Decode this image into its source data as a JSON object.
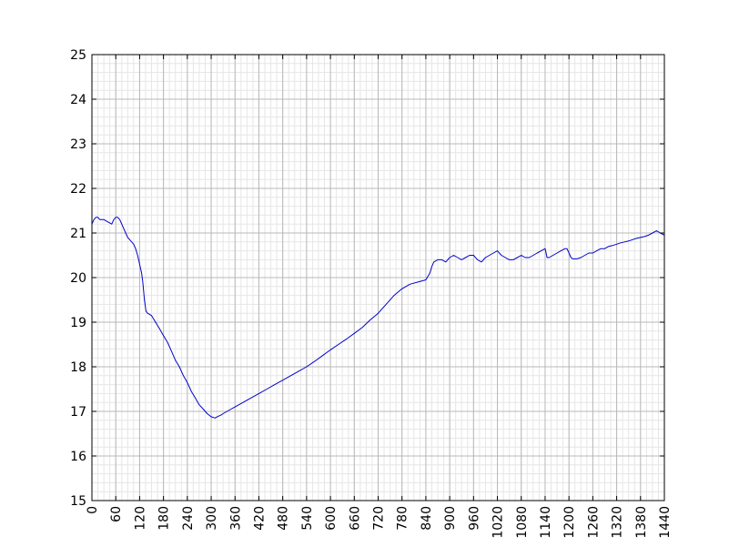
{
  "chart_data": {
    "type": "line",
    "title": "",
    "xlabel": "",
    "ylabel": "",
    "xlim": [
      0,
      1440
    ],
    "ylim": [
      15,
      25
    ],
    "x_ticks": [
      0,
      60,
      120,
      180,
      240,
      300,
      360,
      420,
      480,
      540,
      600,
      660,
      720,
      780,
      840,
      900,
      960,
      1020,
      1080,
      1140,
      1200,
      1260,
      1320,
      1380,
      1440
    ],
    "x_tick_labels": [
      "0",
      "60",
      "120",
      "180",
      "240",
      "300",
      "360",
      "420",
      "480",
      "540",
      "600",
      "660",
      "720",
      "780",
      "840",
      "900",
      "960",
      "1020",
      "1080",
      "1140",
      "1200",
      "1260",
      "1320",
      "1380",
      "1440"
    ],
    "y_ticks": [
      15,
      16,
      17,
      18,
      19,
      20,
      21,
      22,
      23,
      24,
      25
    ],
    "y_tick_labels": [
      "15",
      "16",
      "17",
      "18",
      "19",
      "20",
      "21",
      "22",
      "23",
      "24",
      "25"
    ],
    "grid": true,
    "minor_grid": true,
    "series": [
      {
        "color": "#0000cc",
        "x": [
          0,
          5,
          10,
          15,
          20,
          30,
          40,
          50,
          55,
          60,
          65,
          70,
          75,
          80,
          85,
          90,
          95,
          100,
          105,
          110,
          115,
          120,
          125,
          128,
          132,
          136,
          140,
          150,
          160,
          170,
          180,
          190,
          200,
          210,
          220,
          230,
          240,
          250,
          260,
          270,
          280,
          290,
          300,
          310,
          315,
          320,
          325,
          330,
          340,
          350,
          360,
          380,
          400,
          420,
          440,
          460,
          480,
          500,
          520,
          540,
          560,
          580,
          600,
          620,
          640,
          660,
          680,
          700,
          720,
          740,
          760,
          780,
          800,
          820,
          840,
          850,
          855,
          860,
          870,
          880,
          890,
          900,
          910,
          920,
          930,
          940,
          950,
          960,
          970,
          980,
          990,
          1000,
          1010,
          1020,
          1030,
          1040,
          1050,
          1060,
          1070,
          1080,
          1090,
          1100,
          1110,
          1120,
          1130,
          1140,
          1145,
          1150,
          1160,
          1170,
          1180,
          1190,
          1195,
          1200,
          1205,
          1210,
          1220,
          1230,
          1240,
          1250,
          1260,
          1270,
          1280,
          1290,
          1300,
          1310,
          1320,
          1330,
          1340,
          1350,
          1360,
          1370,
          1380,
          1390,
          1400,
          1410,
          1420,
          1430,
          1440
        ],
        "y": [
          21.2,
          21.3,
          21.35,
          21.35,
          21.3,
          21.3,
          21.25,
          21.2,
          21.3,
          21.35,
          21.35,
          21.3,
          21.2,
          21.1,
          21.0,
          20.9,
          20.85,
          20.8,
          20.75,
          20.65,
          20.5,
          20.3,
          20.1,
          19.9,
          19.5,
          19.25,
          19.2,
          19.15,
          19.0,
          18.85,
          18.7,
          18.55,
          18.35,
          18.15,
          18.0,
          17.8,
          17.65,
          17.45,
          17.3,
          17.15,
          17.05,
          16.95,
          16.88,
          16.85,
          16.88,
          16.9,
          16.92,
          16.95,
          17.0,
          17.05,
          17.1,
          17.2,
          17.3,
          17.4,
          17.5,
          17.6,
          17.7,
          17.8,
          17.9,
          18.0,
          18.12,
          18.25,
          18.38,
          18.5,
          18.62,
          18.75,
          18.88,
          19.05,
          19.2,
          19.4,
          19.6,
          19.75,
          19.85,
          19.9,
          19.95,
          20.1,
          20.25,
          20.35,
          20.4,
          20.4,
          20.35,
          20.45,
          20.5,
          20.45,
          20.4,
          20.45,
          20.5,
          20.5,
          20.4,
          20.35,
          20.45,
          20.5,
          20.55,
          20.6,
          20.5,
          20.45,
          20.4,
          20.4,
          20.45,
          20.5,
          20.45,
          20.45,
          20.5,
          20.55,
          20.6,
          20.65,
          20.45,
          20.45,
          20.5,
          20.55,
          20.6,
          20.65,
          20.65,
          20.55,
          20.45,
          20.42,
          20.42,
          20.45,
          20.5,
          20.55,
          20.55,
          20.6,
          20.65,
          20.65,
          20.7,
          20.72,
          20.75,
          20.78,
          20.8,
          20.82,
          20.85,
          20.88,
          20.9,
          20.92,
          20.95,
          21.0,
          21.05,
          21.0,
          20.95
        ]
      }
    ]
  }
}
